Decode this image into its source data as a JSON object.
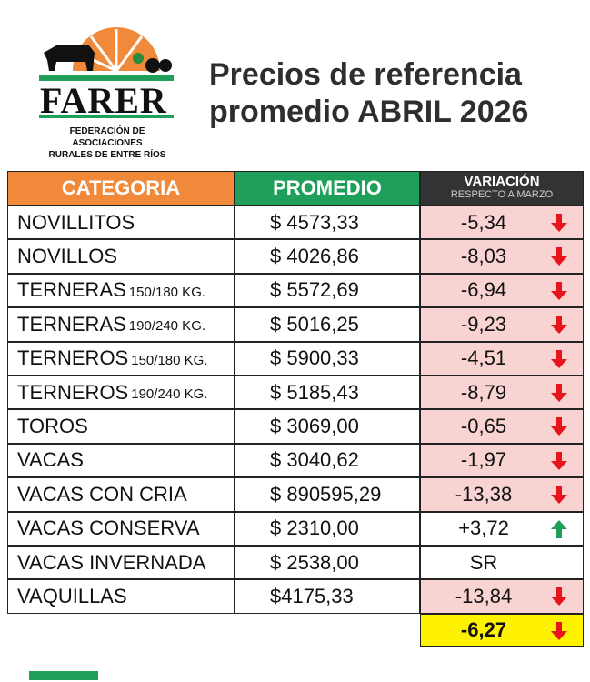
{
  "logo": {
    "name": "FARER",
    "subtitle": [
      "FEDERACIÓN DE ASOCIACIONES",
      "RURALES DE ENTRE RÍOS"
    ]
  },
  "header": {
    "title": [
      "Precios de referencia",
      "promedio ABRIL 2026"
    ]
  },
  "table": {
    "columns": {
      "category": "CATEGORIA",
      "average": "PROMEDIO",
      "variation": "VARIACIÓN",
      "variation_note": "RESPECTO A  MARZO"
    },
    "rows": [
      {
        "name": "NOVILLITOS",
        "price": "$ 4573,33",
        "variation": "-5,34",
        "trend": "down"
      },
      {
        "name": "NOVILLOS",
        "price": "$ 4026,86",
        "variation": "-8,03",
        "trend": "down"
      },
      {
        "name": "TERNERAS",
        "size": "150/180 KG.",
        "price": "$ 5572,69",
        "variation": "-6,94",
        "trend": "down"
      },
      {
        "name": "TERNERAS",
        "size": "190/240 KG.",
        "price": "$ 5016,25",
        "variation": "-9,23",
        "trend": "down"
      },
      {
        "name": "TERNEROS",
        "size": "150/180 KG.",
        "price": "$ 5900,33",
        "variation": "-4,51",
        "trend": "down"
      },
      {
        "name": "TERNEROS",
        "size": "190/240 KG.",
        "price": "$ 5185,43",
        "variation": "-8,79",
        "trend": "down"
      },
      {
        "name": "TOROS",
        "price": "$ 3069,00",
        "variation": "-0,65",
        "trend": "down"
      },
      {
        "name": "VACAS",
        "price": "$ 3040,62",
        "variation": "-1,97",
        "trend": "down"
      },
      {
        "name": "VACAS CON CRIA",
        "price": "$ 890595,29",
        "variation": "-13,38",
        "trend": "down"
      },
      {
        "name": "VACAS CONSERVA",
        "price": "$ 2310,00",
        "variation": "+3,72",
        "trend": "up"
      },
      {
        "name": "VACAS INVERNADA",
        "price": "$ 2538,00",
        "variation": "SR"
      },
      {
        "name": "VAQUILLAS",
        "price": "$4175,33",
        "variation": "-13,84",
        "trend": "down"
      }
    ],
    "total": {
      "variation": "-6,27",
      "trend": "down"
    }
  }
}
